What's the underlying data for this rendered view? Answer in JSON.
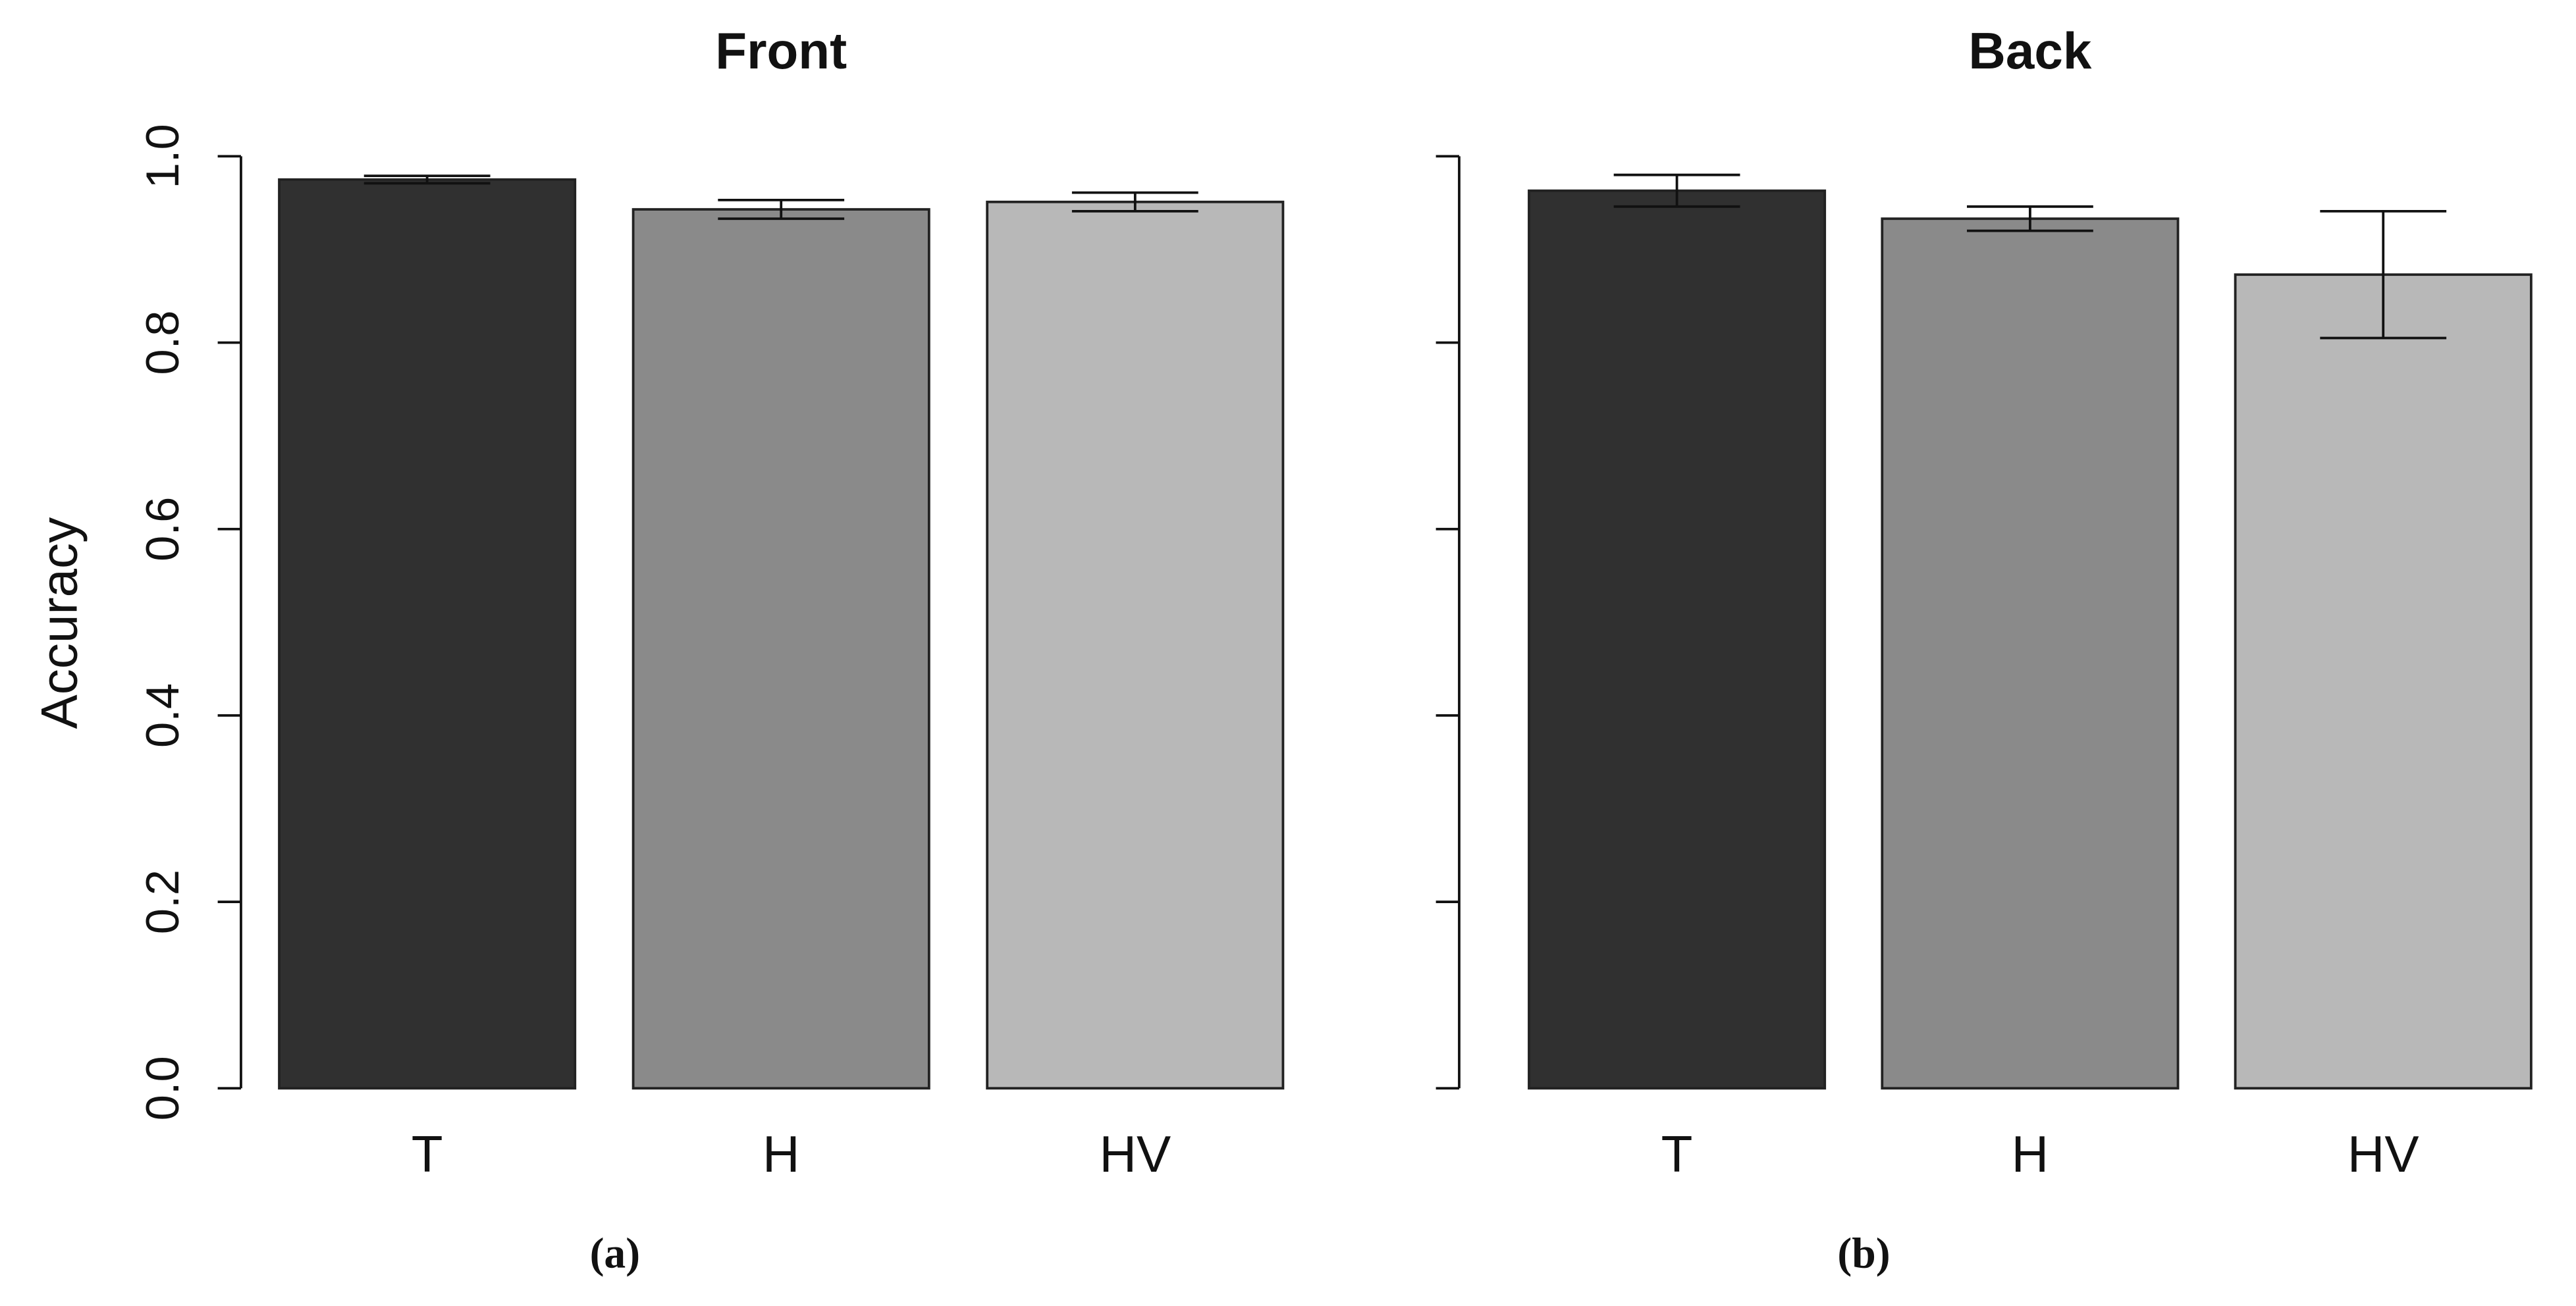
{
  "chart_data": [
    {
      "type": "bar",
      "title": "Front",
      "ylabel": "Accuracy",
      "caption": "(a)",
      "categories": [
        "T",
        "H",
        "HV"
      ],
      "values": [
        0.975,
        0.943,
        0.951
      ],
      "errors": [
        0.004,
        0.01,
        0.01
      ],
      "colors": [
        "#303030",
        "#8a8a8a",
        "#b8b8b8"
      ],
      "ylim": [
        0,
        1
      ],
      "yticks": [
        {
          "value": 0,
          "label": "0.0"
        },
        {
          "value": 0.2,
          "label": "0.2"
        },
        {
          "value": 0.4,
          "label": "0.4"
        },
        {
          "value": 0.6,
          "label": "0.6"
        },
        {
          "value": 0.8,
          "label": "0.8"
        },
        {
          "value": 1,
          "label": "1.0"
        }
      ],
      "ytick_labels": true
    },
    {
      "type": "bar",
      "title": "Back",
      "caption": "(b)",
      "categories": [
        "T",
        "H",
        "HV"
      ],
      "values": [
        0.963,
        0.933,
        0.873
      ],
      "errors": [
        0.017,
        0.013,
        0.068
      ],
      "colors": [
        "#303030",
        "#8a8a8a",
        "#b8b8b8"
      ],
      "ylim": [
        0,
        1
      ],
      "yticks": [
        0,
        0.2,
        0.4,
        0.6,
        0.8,
        1
      ],
      "ytick_labels": false
    }
  ]
}
